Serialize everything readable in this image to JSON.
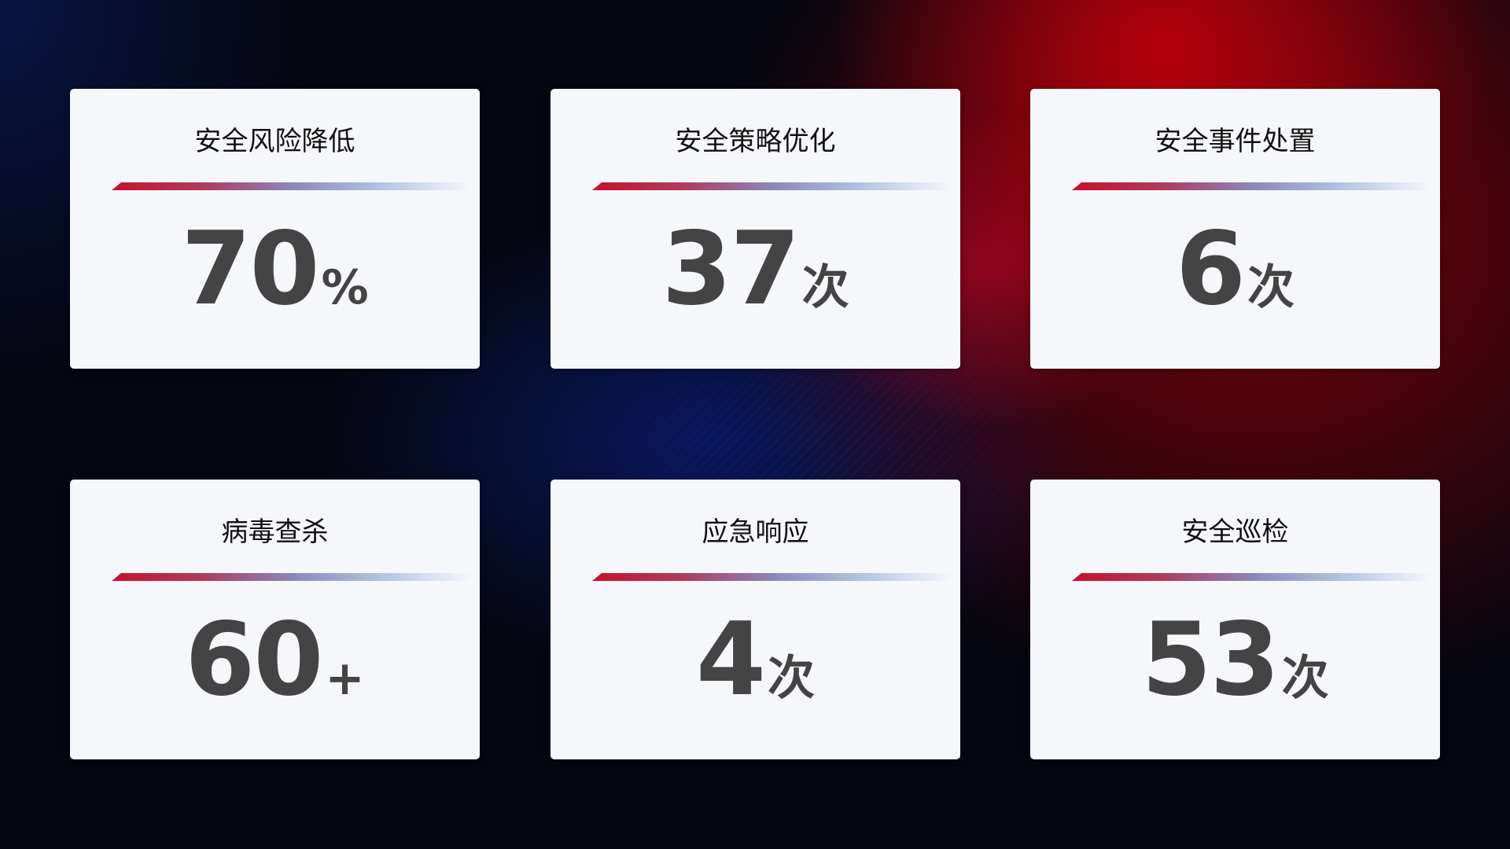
{
  "cards": [
    {
      "title": "安全风险降低",
      "value": "70",
      "unit": "%"
    },
    {
      "title": "安全策略优化",
      "value": "37",
      "unit": "次"
    },
    {
      "title": "安全事件处置",
      "value": "6",
      "unit": "次"
    },
    {
      "title": "病毒查杀",
      "value": "60",
      "unit": "+"
    },
    {
      "title": "应急响应",
      "value": "4",
      "unit": "次"
    },
    {
      "title": "安全巡检",
      "value": "53",
      "unit": "次"
    }
  ],
  "colors": {
    "accent_red": "#c8102e",
    "accent_blue": "#8a86b8",
    "card_bg": "#f6f7fb",
    "value_text": "#444444"
  }
}
